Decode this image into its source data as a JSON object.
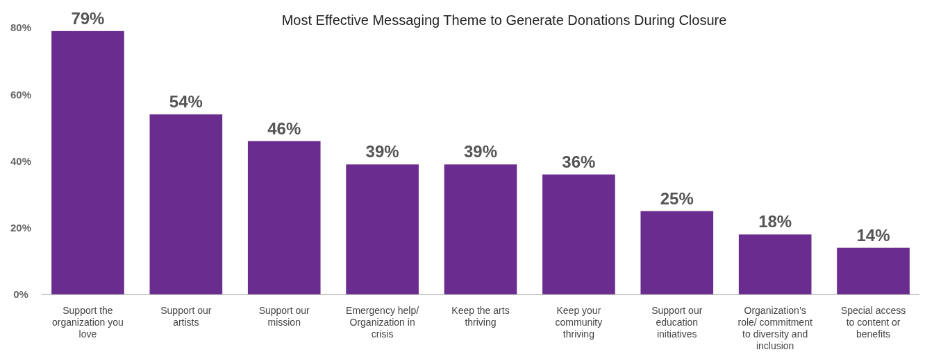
{
  "chart_data": {
    "type": "bar",
    "title": "Most Effective Messaging Theme to Generate Donations During Closure",
    "categories": [
      "Support the organization you love",
      "Support our artists",
      "Support our mission",
      "Emergency help/ Organization in crisis",
      "Keep the arts thriving",
      "Keep your community thriving",
      "Support our education initiatives",
      "Organization’s role/ commitment to diversity and inclusion",
      "Special access to content or benefits"
    ],
    "values": [
      79,
      54,
      46,
      39,
      39,
      36,
      25,
      18,
      14
    ],
    "color": "#6a2c8e",
    "ylim": [
      0,
      80
    ],
    "yticks": [
      {
        "value": 0,
        "label": "0%"
      },
      {
        "value": 20,
        "label": "20%"
      },
      {
        "value": 40,
        "label": "40%"
      },
      {
        "value": 60,
        "label": "60%"
      },
      {
        "value": 80,
        "label": "80%"
      }
    ],
    "value_labels": [
      "79%",
      "54%",
      "46%",
      "39%",
      "39%",
      "36%",
      "25%",
      "18%",
      "14%"
    ]
  }
}
